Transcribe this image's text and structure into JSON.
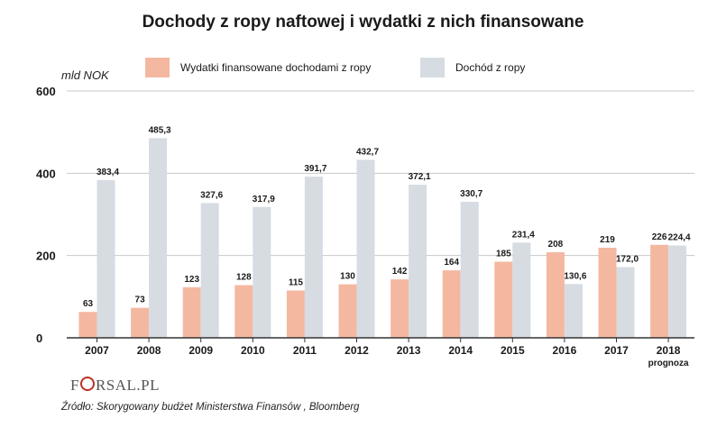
{
  "title": "Dochody z ropy naftowej i wydatki z nich finansowane",
  "unit": "mld NOK",
  "source": "Źródło: Skorygowany budżet Ministerstwa Finansów , Bloomberg",
  "brand": {
    "prefix": "F",
    "suffix": "RSAL.PL"
  },
  "colors": {
    "spending": "#f4b8a1",
    "revenue": "#d6dce2",
    "grid": "#c8c8c8",
    "axis": "#333333"
  },
  "chart_data": {
    "type": "bar",
    "title": "Dochody z ropy naftowej i wydatki z nich finansowane",
    "ylabel": "mld NOK",
    "xlabel": "",
    "ylim": [
      0,
      600
    ],
    "yticks": [
      "0",
      "200",
      "400",
      "600"
    ],
    "ytick_values": [
      0,
      200,
      400,
      600
    ],
    "categories": [
      "2007",
      "2008",
      "2009",
      "2010",
      "2011",
      "2012",
      "2013",
      "2014",
      "2015",
      "2016",
      "2017",
      "2018"
    ],
    "category_sublabels": [
      "",
      "",
      "",
      "",
      "",
      "",
      "",
      "",
      "",
      "",
      "",
      "prognoza"
    ],
    "grid": true,
    "legend_position": "top",
    "series": [
      {
        "name": "Wydatki finansowane dochodami z ropy",
        "values": [
          63,
          73,
          123,
          128,
          115,
          130,
          142,
          164,
          185,
          208,
          219,
          226
        ],
        "labels": [
          "63",
          "73",
          "123",
          "128",
          "115",
          "130",
          "142",
          "164",
          "185",
          "208",
          "219",
          "226"
        ]
      },
      {
        "name": "Dochód z ropy",
        "values": [
          383.4,
          485.3,
          327.6,
          317.9,
          391.7,
          432.7,
          372.1,
          330.7,
          231.4,
          130.6,
          172.0,
          224.4
        ],
        "labels": [
          "383,4",
          "485,3",
          "327,6",
          "317,9",
          "391,7",
          "432,7",
          "372,1",
          "330,7",
          "231,4",
          "130,6",
          "172,0",
          "224,4"
        ]
      }
    ]
  }
}
